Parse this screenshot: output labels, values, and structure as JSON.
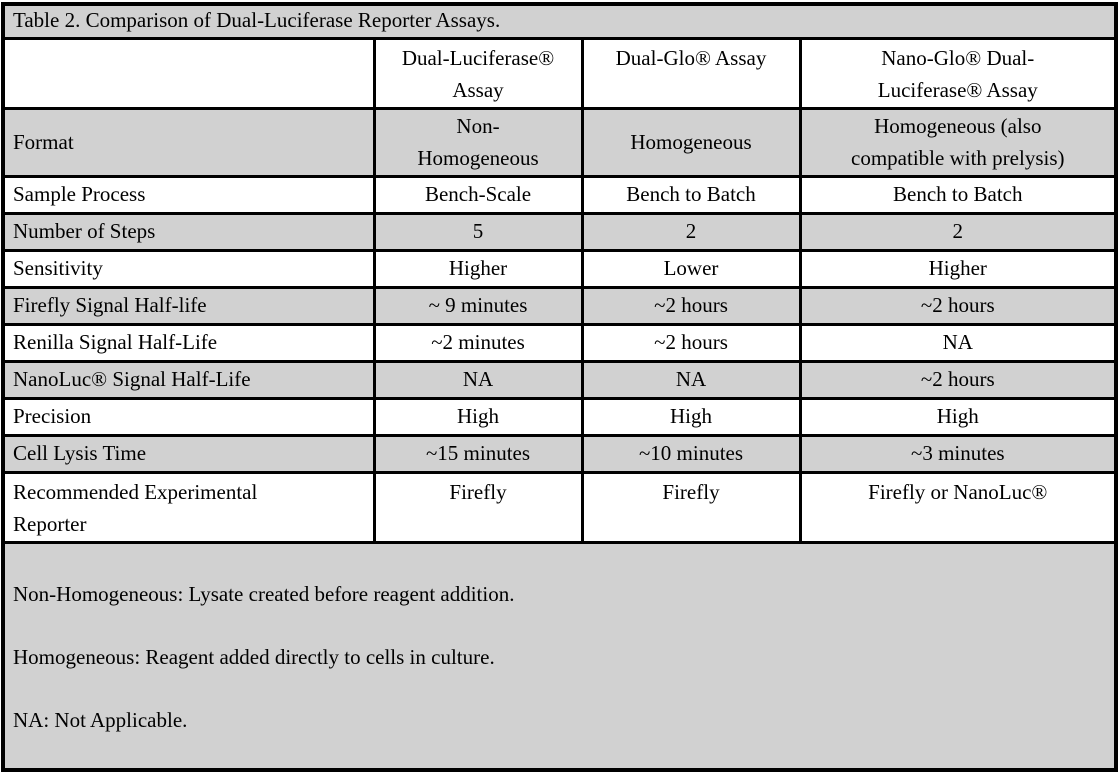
{
  "table": {
    "title": "Table 2. Comparison of Dual-Luciferase Reporter Assays.",
    "columns": [
      "",
      "Dual-Luciferase®\nAssay",
      "Dual-Glo® Assay",
      "Nano-Glo® Dual-\nLuciferase® Assay"
    ],
    "rows": [
      {
        "label": "Format",
        "values": [
          "Non-\nHomogeneous",
          "Homogeneous",
          "Homogeneous (also\ncompatible with prelysis)"
        ]
      },
      {
        "label": "Sample Process",
        "values": [
          "Bench-Scale",
          "Bench to Batch",
          "Bench to Batch"
        ]
      },
      {
        "label": "Number of Steps",
        "values": [
          "5",
          "2",
          "2"
        ]
      },
      {
        "label": "Sensitivity",
        "values": [
          "Higher",
          "Lower",
          "Higher"
        ]
      },
      {
        "label": "Firefly Signal Half-life",
        "values": [
          "~ 9 minutes",
          "~2 hours",
          "~2 hours"
        ]
      },
      {
        "label": "Renilla Signal Half-Life",
        "values": [
          "~2 minutes",
          "~2 hours",
          "NA"
        ]
      },
      {
        "label": "NanoLuc® Signal Half-Life",
        "values": [
          "NA",
          "NA",
          "~2 hours"
        ]
      },
      {
        "label": "Precision",
        "values": [
          "High",
          "High",
          "High"
        ]
      },
      {
        "label": "Cell Lysis Time",
        "values": [
          "~15 minutes",
          "~10 minutes",
          "~3 minutes"
        ]
      },
      {
        "label": "Recommended Experimental\nReporter",
        "values": [
          "Firefly",
          "Firefly",
          "Firefly or NanoLuc®"
        ]
      }
    ],
    "footnotes": [
      "Non-Homogeneous: Lysate created before reagent addition.",
      "Homogeneous: Reagent added directly to cells in culture.",
      "NA: Not Applicable."
    ]
  },
  "colors": {
    "row_shade": "#d1d1d1",
    "border": "#000000",
    "background": "#ffffff",
    "text": "#000000"
  }
}
